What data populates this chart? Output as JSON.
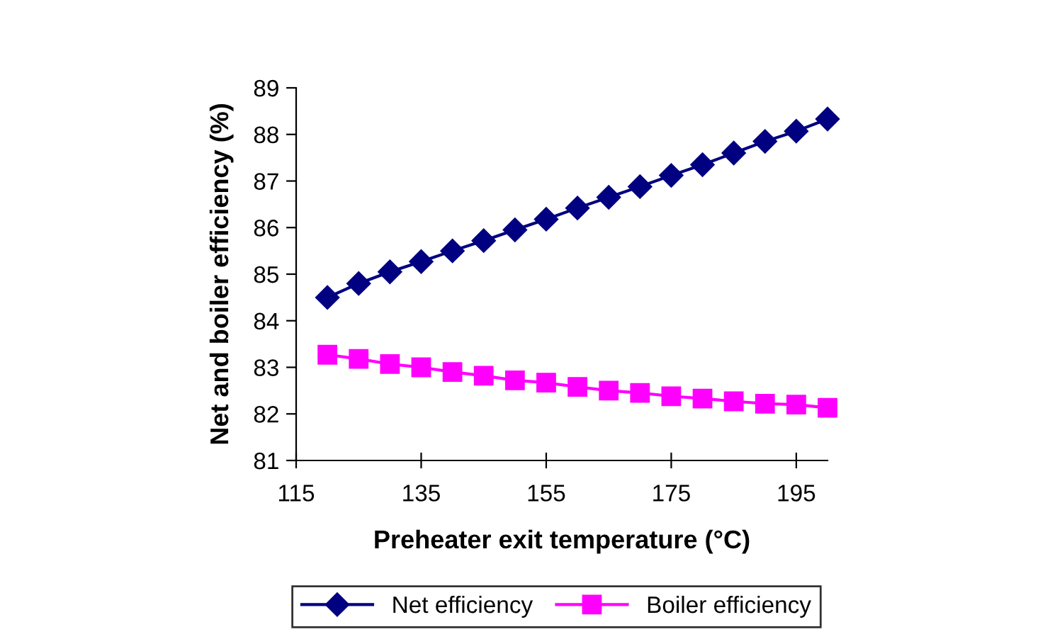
{
  "chart_data": {
    "type": "line",
    "xlabel": "Preheater exit temperature (°C)",
    "ylabel": "Net and boiler efficiency (%)",
    "x": [
      120,
      125,
      130,
      135,
      140,
      145,
      150,
      155,
      160,
      165,
      170,
      175,
      180,
      185,
      190,
      195,
      200
    ],
    "series": [
      {
        "name": "Net efficiency",
        "color": "#000080",
        "marker": "diamond",
        "values": [
          84.5,
          84.8,
          85.05,
          85.27,
          85.5,
          85.72,
          85.95,
          86.18,
          86.42,
          86.65,
          86.88,
          87.12,
          87.35,
          87.6,
          87.85,
          88.07,
          88.33
        ]
      },
      {
        "name": "Boiler efficiency",
        "color": "#ff00ff",
        "marker": "square",
        "values": [
          83.27,
          83.18,
          83.07,
          83.0,
          82.9,
          82.82,
          82.72,
          82.67,
          82.58,
          82.5,
          82.45,
          82.38,
          82.33,
          82.27,
          82.22,
          82.2,
          82.13
        ]
      }
    ],
    "xlim": [
      115,
      200
    ],
    "xticks": [
      115,
      135,
      155,
      175,
      195
    ],
    "ylim": [
      81,
      89
    ],
    "yticks": [
      81,
      82,
      83,
      84,
      85,
      86,
      87,
      88,
      89
    ],
    "grid": false,
    "legend": "bottom",
    "line_style": "solid"
  }
}
